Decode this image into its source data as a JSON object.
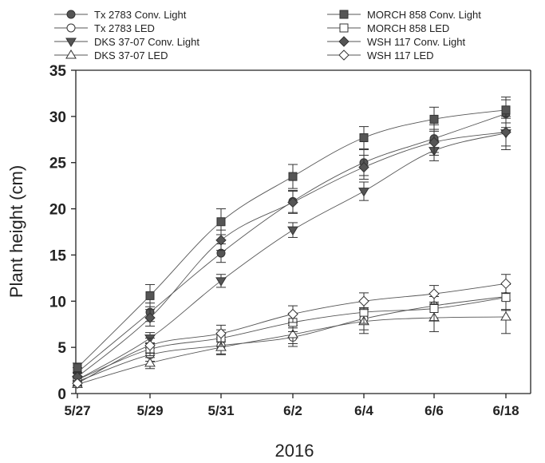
{
  "chart_data": {
    "type": "line",
    "xlabel": "2016",
    "ylabel": "Plant height (cm)",
    "categories": [
      "5/27",
      "5/29",
      "5/31",
      "6/2",
      "6/4",
      "6/6",
      "6/18"
    ],
    "ylim": [
      0,
      35
    ],
    "yticks": [
      0,
      5,
      10,
      15,
      20,
      25,
      30,
      35
    ],
    "grid": false,
    "legend_position": "top",
    "series": [
      {
        "name": "Tx 2783 Conv. Light",
        "marker": "circle",
        "fill": "#555555",
        "values": [
          2.3,
          8.8,
          15.2,
          20.8,
          25.0,
          27.6,
          30.3
        ],
        "errors": [
          0.5,
          1.0,
          1.0,
          1.2,
          1.4,
          1.5,
          1.5
        ]
      },
      {
        "name": "Tx 2783 LED",
        "marker": "circle",
        "fill": "#ffffff",
        "values": [
          1.3,
          4.2,
          5.2,
          6.1,
          8.1,
          9.5,
          10.5
        ],
        "errors": [
          0.4,
          0.7,
          0.9,
          1.0,
          1.2,
          1.3,
          1.4
        ]
      },
      {
        "name": "DKS 37-07 Conv. Light",
        "marker": "triangle-down",
        "fill": "#555555",
        "values": [
          1.5,
          6.0,
          12.2,
          17.7,
          21.9,
          26.3,
          28.2
        ],
        "errors": [
          0.4,
          0.6,
          0.7,
          0.8,
          1.0,
          1.1,
          1.8
        ]
      },
      {
        "name": "DKS 37-07 LED",
        "marker": "triangle-up",
        "fill": "#ffffff",
        "values": [
          1.0,
          3.3,
          5.0,
          6.4,
          7.8,
          8.2,
          8.3
        ],
        "errors": [
          0.3,
          0.6,
          0.8,
          1.0,
          1.3,
          1.5,
          1.8
        ]
      },
      {
        "name": "MORCH 858 Conv. Light",
        "marker": "square",
        "fill": "#555555",
        "values": [
          2.8,
          10.6,
          18.6,
          23.5,
          27.7,
          29.7,
          30.7
        ],
        "errors": [
          0.5,
          1.2,
          1.4,
          1.3,
          1.2,
          1.3,
          1.4
        ]
      },
      {
        "name": "MORCH 858 LED",
        "marker": "square",
        "fill": "#ffffff",
        "values": [
          1.5,
          4.8,
          6.0,
          7.7,
          8.8,
          9.2,
          10.4
        ],
        "errors": [
          0.4,
          0.7,
          0.9,
          1.0,
          1.2,
          1.3,
          1.4
        ]
      },
      {
        "name": "WSH 117 Conv. Light",
        "marker": "diamond",
        "fill": "#555555",
        "values": [
          1.8,
          8.2,
          16.6,
          20.7,
          24.5,
          27.2,
          28.3
        ],
        "errors": [
          0.4,
          0.9,
          1.1,
          1.2,
          1.3,
          1.4,
          1.5
        ]
      },
      {
        "name": "WSH 117 LED",
        "marker": "diamond",
        "fill": "#ffffff",
        "values": [
          1.1,
          5.2,
          6.5,
          8.6,
          10.0,
          10.8,
          11.9
        ],
        "errors": [
          0.3,
          0.8,
          0.9,
          0.9,
          0.9,
          0.9,
          1.0
        ]
      }
    ]
  }
}
